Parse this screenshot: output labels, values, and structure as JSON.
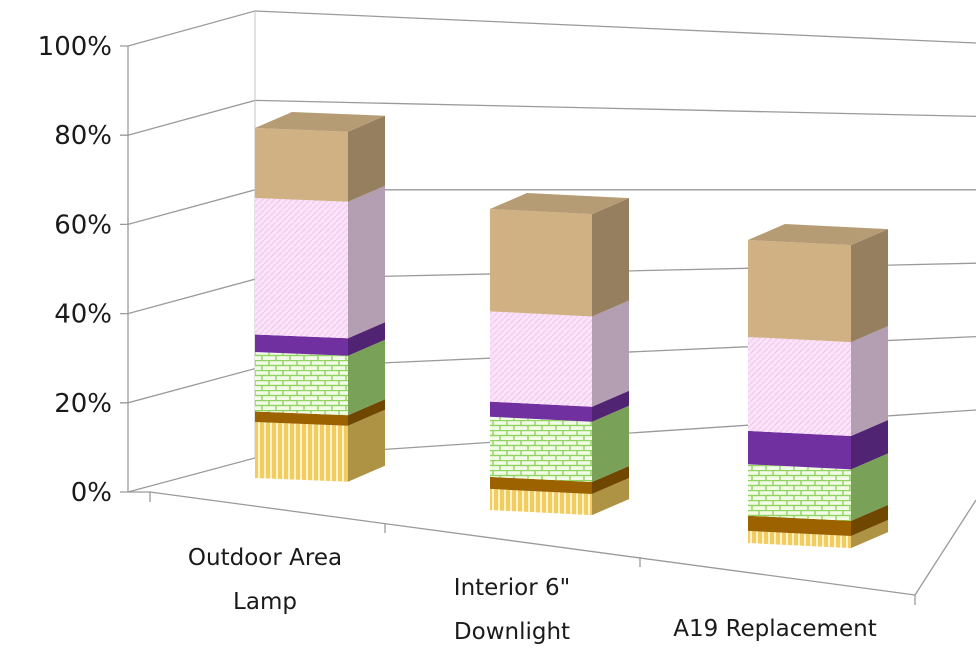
{
  "chart_data": {
    "type": "bar",
    "stacked": true,
    "percent": true,
    "three_d": true,
    "title": "",
    "xlabel": "",
    "ylabel": "",
    "ylim": [
      0,
      100
    ],
    "yticks": [
      "0%",
      "20%",
      "40%",
      "60%",
      "80%",
      "100%"
    ],
    "grid": true,
    "legend": "none",
    "categories": [
      [
        "Outdoor Area",
        "Lamp"
      ],
      [
        "Interior 6\"",
        "Downlight"
      ],
      [
        "A19 Replacement"
      ]
    ],
    "series": [
      {
        "color": "#f2cc60",
        "pattern": "vertical-stripes",
        "values": [
          16,
          7,
          4
        ]
      },
      {
        "color": "#9c6200",
        "pattern": "solid",
        "values": [
          3,
          4,
          5
        ]
      },
      {
        "color": "#a8e07a",
        "pattern": "brick",
        "values": [
          17,
          20,
          17
        ]
      },
      {
        "color": "#7030a0",
        "pattern": "solid",
        "values": [
          5,
          5,
          11
        ]
      },
      {
        "color": "#f9ddf6",
        "pattern": "diagonal-stripes",
        "values": [
          39,
          30,
          31
        ]
      },
      {
        "color": "#cfb184",
        "pattern": "solid",
        "values": [
          20,
          34,
          32
        ]
      }
    ]
  }
}
